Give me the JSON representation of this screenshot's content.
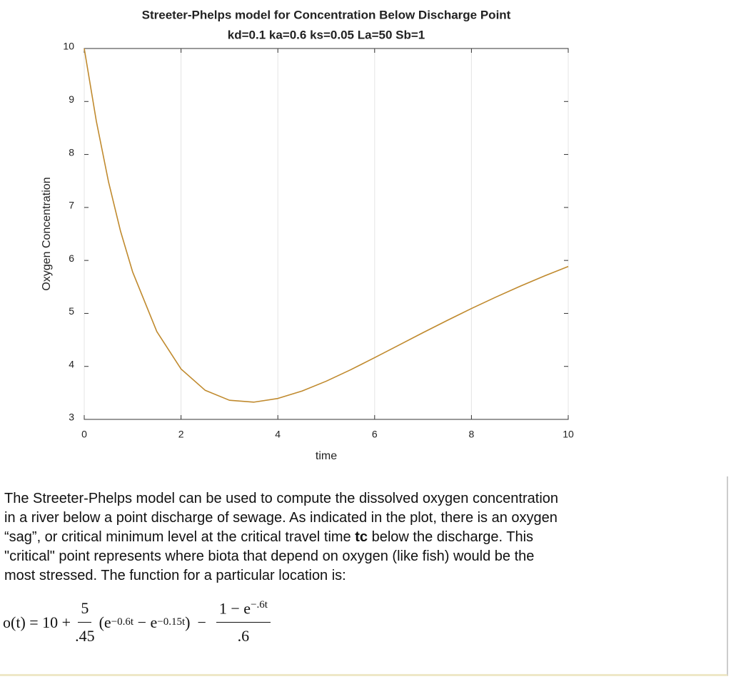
{
  "chart_data": {
    "type": "line",
    "title": "Streeter-Phelps model for Concentration Below Discharge Point",
    "subtitle": "kd=0.1 ka=0.6 ks=0.05 La=50 Sb=1",
    "x_label": "time",
    "y_label": "Oxygen Concentration",
    "x": [
      0,
      0.25,
      0.5,
      0.75,
      1,
      1.5,
      2,
      2.5,
      3,
      3.5,
      4,
      4.5,
      5,
      5.5,
      6,
      6.5,
      7,
      7.5,
      8,
      8.5,
      9,
      9.5,
      10
    ],
    "series": [
      {
        "color": "#c08a2e",
        "values": [
          10,
          8.629,
          7.491,
          6.552,
          5.783,
          4.656,
          3.951,
          3.548,
          3.361,
          3.325,
          3.395,
          3.535,
          3.721,
          3.935,
          4.165,
          4.401,
          4.637,
          4.868,
          5.092,
          5.306,
          5.511,
          5.704,
          5.886
        ]
      }
    ],
    "xlim": [
      0,
      10
    ],
    "xticks": [
      0,
      2,
      4,
      6,
      8,
      10
    ],
    "ylim": [
      3,
      10
    ],
    "yticks": [
      3,
      4,
      5,
      6,
      7,
      8,
      9,
      10
    ],
    "grid": "x"
  },
  "paragraph": {
    "line_1": "The Streeter-Phelps model can be used to compute the dissolved oxygen concentration",
    "line_2": "in a river below a point discharge of sewage. As indicated in the plot, there is an oxygen",
    "line_3_start": "“sag”, or critical minimum level at the critical travel time ",
    "line_3_bold": "tc",
    "line_3_end": " below the discharge. This",
    "line_4": "\"critical\" point represents where biota that depend on oxygen (like fish) would be the",
    "line_5": "most stressed. The function for a particular location is:"
  },
  "formula": {
    "lhs": "o(t) = 10 +",
    "frac1_num": "5",
    "frac1_den": ".45",
    "open": "(e",
    "exp1": "−0.6t",
    "minus_e": " − e",
    "exp2": "−0.15t",
    "close": ")",
    "minus": "−",
    "frac2_num": "1 − e",
    "exp3": "−.6t",
    "frac2_den": ".6"
  }
}
